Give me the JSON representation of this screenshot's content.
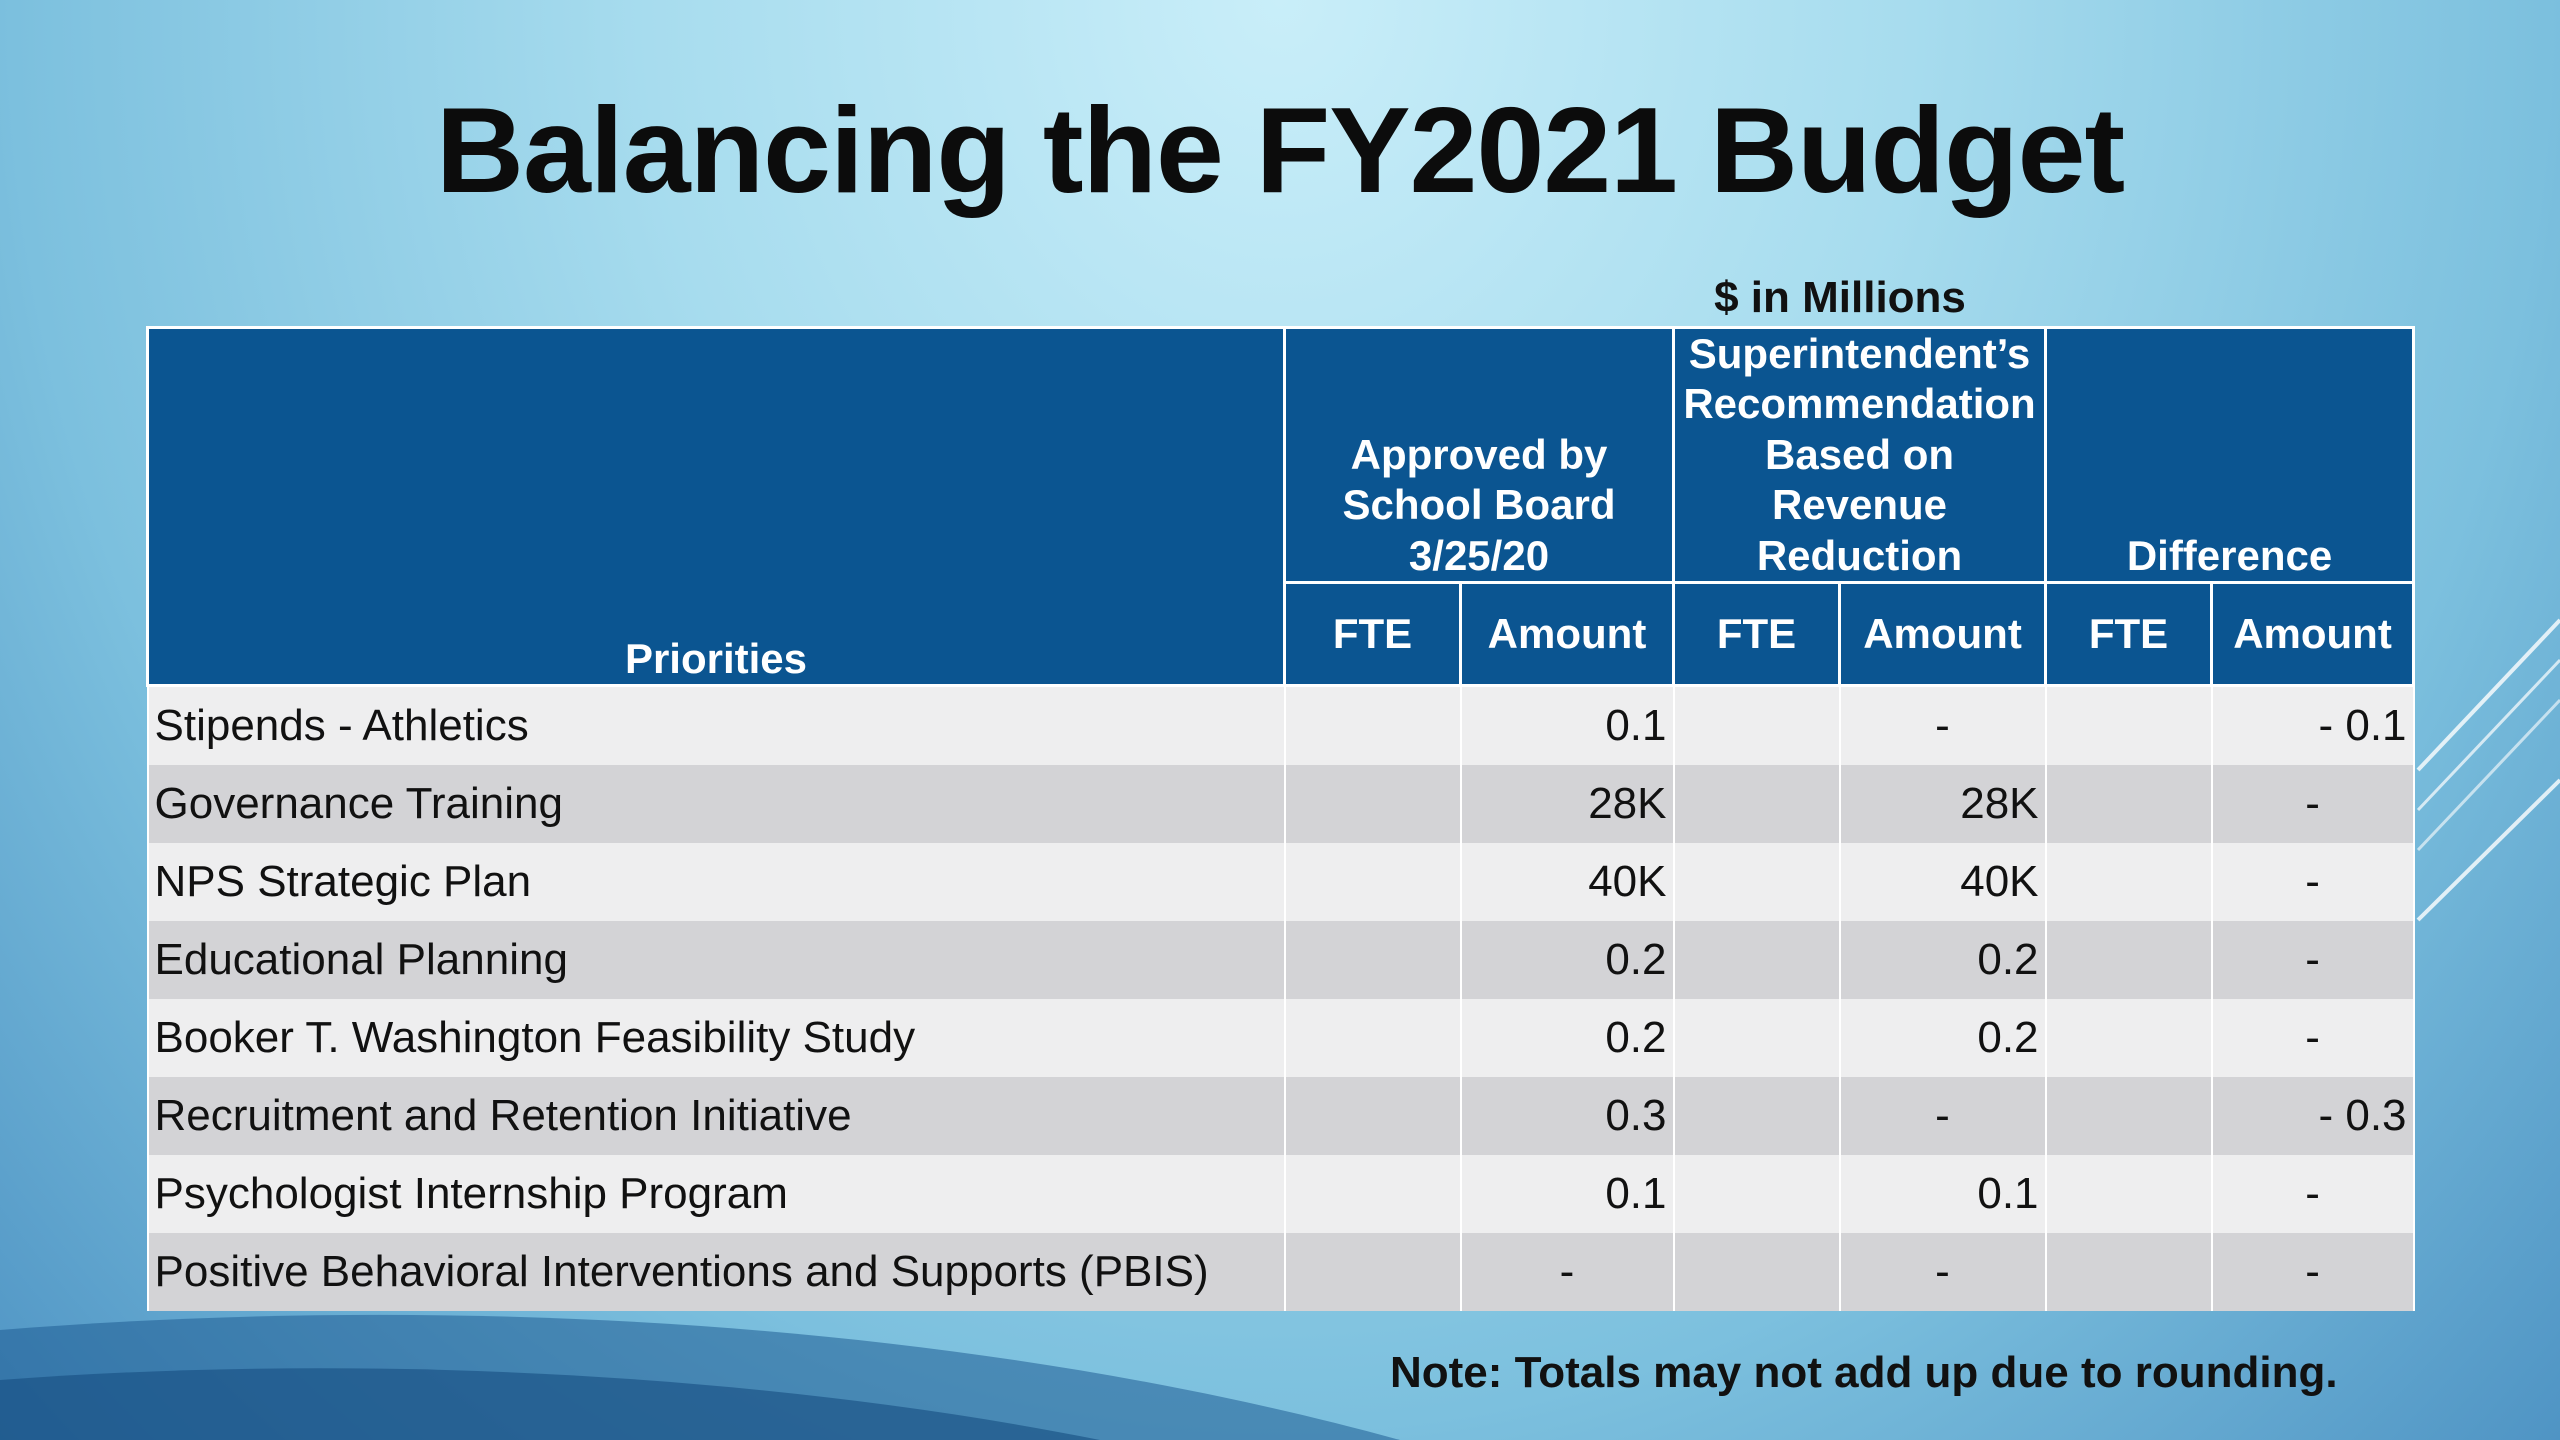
{
  "slide": {
    "title": "Balancing the FY2021 Budget",
    "units_label": "$ in Millions",
    "note": "Note:  Totals may not add up due to rounding."
  },
  "table": {
    "priorities_header": "Priorities",
    "group_headers": [
      "Approved by School Board 3/25/20",
      "Superintendent’s Recommendation Based on Revenue Reduction",
      "Difference"
    ],
    "sub_headers": [
      "FTE",
      "Amount",
      "FTE",
      "Amount",
      "FTE",
      "Amount"
    ],
    "rows": [
      {
        "priority": "Stipends - Athletics",
        "approved_fte": "",
        "approved_amount": "0.1",
        "recommended_fte": "",
        "recommended_amount": "-",
        "difference_fte": "",
        "difference_amount": "- 0.1"
      },
      {
        "priority": "Governance Training",
        "approved_fte": "",
        "approved_amount": "28K",
        "recommended_fte": "",
        "recommended_amount": "28K",
        "difference_fte": "",
        "difference_amount": "-"
      },
      {
        "priority": "NPS Strategic Plan",
        "approved_fte": "",
        "approved_amount": "40K",
        "recommended_fte": "",
        "recommended_amount": "40K",
        "difference_fte": "",
        "difference_amount": "-"
      },
      {
        "priority": "Educational Planning",
        "approved_fte": "",
        "approved_amount": "0.2",
        "recommended_fte": "",
        "recommended_amount": "0.2",
        "difference_fte": "",
        "difference_amount": "-"
      },
      {
        "priority": "Booker T. Washington Feasibility Study",
        "approved_fte": "",
        "approved_amount": "0.2",
        "recommended_fte": "",
        "recommended_amount": "0.2",
        "difference_fte": "",
        "difference_amount": "-"
      },
      {
        "priority": "Recruitment and Retention Initiative",
        "approved_fte": "",
        "approved_amount": "0.3",
        "recommended_fte": "",
        "recommended_amount": "-",
        "difference_fte": "",
        "difference_amount": "- 0.3"
      },
      {
        "priority": "Psychologist Internship Program",
        "approved_fte": "",
        "approved_amount": "0.1",
        "recommended_fte": "",
        "recommended_amount": "0.1",
        "difference_fte": "",
        "difference_amount": "-"
      },
      {
        "priority": "Positive Behavioral Interventions and Supports (PBIS)",
        "approved_fte": "",
        "approved_amount": "-",
        "recommended_fte": "",
        "recommended_amount": "-",
        "difference_fte": "",
        "difference_amount": "-"
      }
    ]
  },
  "colors": {
    "header_fill": "#0b5591",
    "row_light": "#eeeeef",
    "row_dark": "#d3d3d6"
  }
}
